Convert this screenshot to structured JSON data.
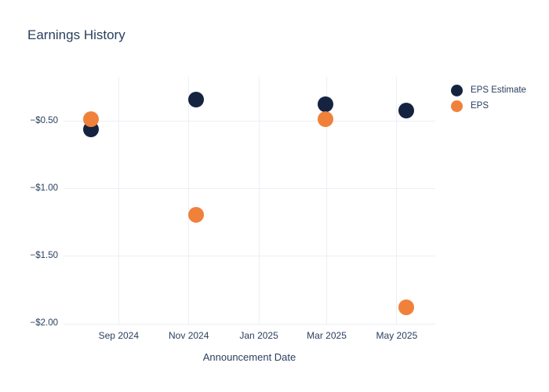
{
  "title": "Earnings History",
  "colors": {
    "eps_estimate": "#142440",
    "eps": "#f0813a",
    "grid": "#ebeff5",
    "text": "#2a3f5f",
    "background": "#ffffff"
  },
  "legend": {
    "items": [
      {
        "label": "EPS Estimate",
        "color": "#142440"
      },
      {
        "label": "EPS",
        "color": "#f0813a"
      }
    ]
  },
  "chart_data": {
    "type": "scatter",
    "title": "Earnings History",
    "xlabel": "Announcement Date",
    "ylabel": "",
    "grid": true,
    "legend_position": "right",
    "x_epoch": "2024-07-01",
    "x_range_days": [
      14,
      337.5
    ],
    "x_ticks": [
      {
        "label": "Sep 2024",
        "day": 62
      },
      {
        "label": "Nov 2024",
        "day": 123
      },
      {
        "label": "Jan 2025",
        "day": 184
      },
      {
        "label": "Mar 2025",
        "day": 243
      },
      {
        "label": "May 2025",
        "day": 304
      }
    ],
    "y_range": [
      -2.0,
      -0.169
    ],
    "y_ticks": [
      {
        "label": "−$0.50",
        "value": -0.5
      },
      {
        "label": "−$1.00",
        "value": -1.0
      },
      {
        "label": "−$1.50",
        "value": -1.5
      },
      {
        "label": "−$2.00",
        "value": -2.0
      }
    ],
    "series": [
      {
        "name": "EPS Estimate",
        "color": "#142440",
        "marker_size": 20,
        "points": [
          {
            "date": "2024-08-08",
            "day": 38,
            "value": -0.56
          },
          {
            "date": "2024-11-07",
            "day": 129,
            "value": -0.34
          },
          {
            "date": "2025-02-28",
            "day": 242,
            "value": -0.37
          },
          {
            "date": "2025-05-09",
            "day": 312,
            "value": -0.42
          }
        ]
      },
      {
        "name": "EPS",
        "color": "#f0813a",
        "marker_size": 20,
        "points": [
          {
            "date": "2024-08-08",
            "day": 38,
            "value": -0.48
          },
          {
            "date": "2024-11-07",
            "day": 129,
            "value": -1.19
          },
          {
            "date": "2025-02-28",
            "day": 242,
            "value": -0.48
          },
          {
            "date": "2025-05-09",
            "day": 312,
            "value": -1.88
          }
        ]
      }
    ]
  }
}
